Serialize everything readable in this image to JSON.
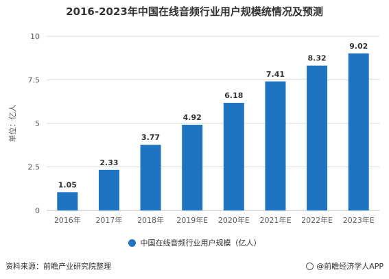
{
  "chart_data": {
    "type": "bar",
    "title": "2016-2023年中国在线音频行业用户规模统情况及预测",
    "ylabel": "单位：亿人",
    "xlabel": "",
    "categories": [
      "2016年",
      "2017年",
      "2018年",
      "2019年E",
      "2020年E",
      "2021年E",
      "2022年E",
      "2023年E"
    ],
    "series": [
      {
        "name": "中国在线音频行业用户规模（亿人）",
        "values": [
          1.05,
          2.33,
          3.77,
          4.92,
          6.18,
          7.41,
          8.32,
          9.02
        ]
      }
    ],
    "data_labels": [
      "1.05",
      "2.33",
      "3.77",
      "4.92",
      "6.18",
      "7.41",
      "8.32",
      "9.02"
    ],
    "ylim": [
      0,
      10
    ],
    "yticks": [
      "0",
      "2.5",
      "5",
      "7.5",
      "10"
    ],
    "ytick_values": [
      0,
      2.5,
      5,
      7.5,
      10
    ],
    "grid": true,
    "legend_position": "bottom",
    "bar_color": "#1f74c1",
    "grid_color": "#d9d9d9"
  },
  "footer": {
    "source": "资料来源：前瞻产业研究院整理",
    "brand": "@前瞻经济学人APP"
  }
}
